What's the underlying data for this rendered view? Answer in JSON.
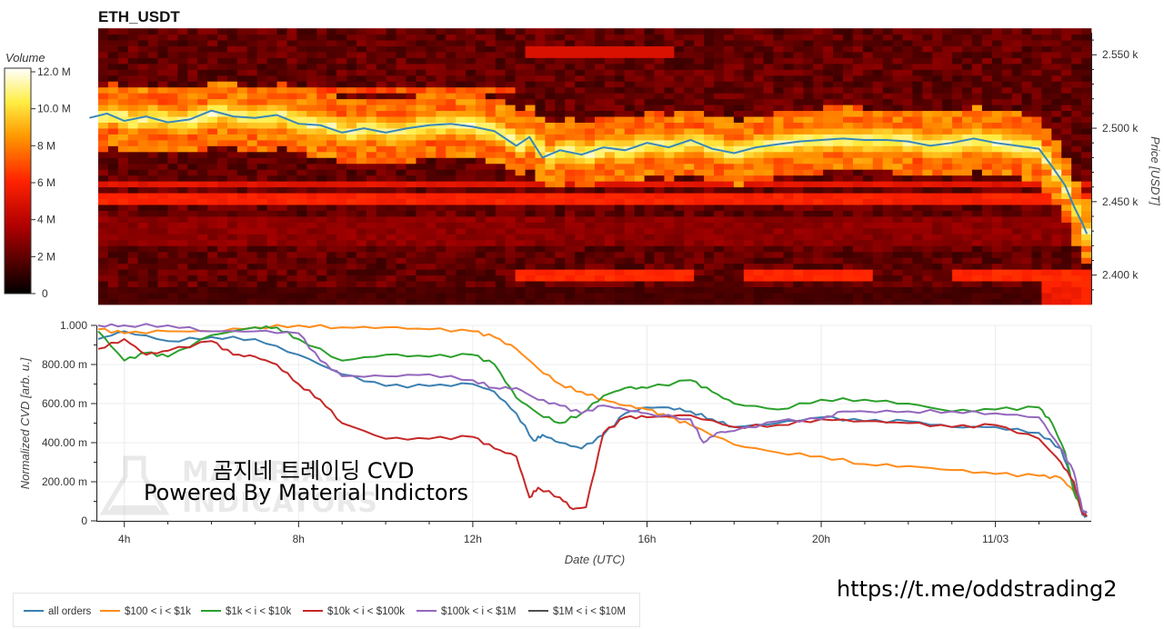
{
  "chart_data": [
    {
      "type": "heatmap",
      "title": "ETH_USDT",
      "colorbar": {
        "label": "Volume",
        "ticks": [
          "0",
          "2 M",
          "4 M",
          "6 M",
          "8 M",
          "10.0 M",
          "12.0 M"
        ],
        "range": [
          0,
          12000000
        ]
      },
      "y_axis": {
        "label": "Price [USDT]",
        "ticks": [
          "2.400 k",
          "2.450 k",
          "2.500 k",
          "2.550 k"
        ],
        "range": [
          2380,
          2565
        ]
      },
      "price_line": {
        "color": "#3a87b8",
        "points": [
          [
            3.2,
            2507
          ],
          [
            3.6,
            2510
          ],
          [
            4.0,
            2505
          ],
          [
            4.5,
            2508
          ],
          [
            5.0,
            2504
          ],
          [
            5.5,
            2506
          ],
          [
            6.0,
            2512
          ],
          [
            6.5,
            2508
          ],
          [
            7.0,
            2507
          ],
          [
            7.5,
            2509
          ],
          [
            8.0,
            2503
          ],
          [
            8.5,
            2502
          ],
          [
            9.0,
            2497
          ],
          [
            9.5,
            2500
          ],
          [
            10.0,
            2497
          ],
          [
            10.5,
            2500
          ],
          [
            11.0,
            2502
          ],
          [
            11.5,
            2503
          ],
          [
            12.0,
            2501
          ],
          [
            12.5,
            2498
          ],
          [
            12.8,
            2492
          ],
          [
            13.0,
            2488
          ],
          [
            13.3,
            2494
          ],
          [
            13.6,
            2480
          ],
          [
            14.0,
            2485
          ],
          [
            14.5,
            2482
          ],
          [
            15.0,
            2487
          ],
          [
            15.5,
            2485
          ],
          [
            16.0,
            2490
          ],
          [
            16.5,
            2487
          ],
          [
            17.0,
            2492
          ],
          [
            17.5,
            2486
          ],
          [
            18.0,
            2483
          ],
          [
            18.5,
            2487
          ],
          [
            19.0,
            2489
          ],
          [
            19.5,
            2491
          ],
          [
            20.0,
            2492
          ],
          [
            20.5,
            2493
          ],
          [
            21.0,
            2492
          ],
          [
            21.5,
            2492
          ],
          [
            22.0,
            2491
          ],
          [
            22.5,
            2488
          ],
          [
            23.0,
            2490
          ],
          [
            23.5,
            2493
          ],
          [
            24.0,
            2490
          ],
          [
            24.5,
            2488
          ],
          [
            25.0,
            2486
          ],
          [
            25.3,
            2474
          ],
          [
            25.6,
            2461
          ],
          [
            25.8,
            2447
          ],
          [
            26.0,
            2435
          ],
          [
            26.1,
            2428
          ]
        ]
      }
    },
    {
      "type": "line",
      "xlabel": "Date (UTC)",
      "ylabel": "Normalized CVD [arb. u.]",
      "x_ticks": [
        "4h",
        "8h",
        "12h",
        "16h",
        "20h",
        "11/03"
      ],
      "x_tick_hours": [
        4,
        8,
        12,
        16,
        20,
        24
      ],
      "xlim": [
        3.4,
        26.2
      ],
      "y_ticks": [
        "0",
        "200.00 m",
        "400.00 m",
        "600.00 m",
        "800.00 m",
        "1.000"
      ],
      "ylim": [
        0,
        1.0
      ],
      "series": [
        {
          "name": "all orders",
          "color": "#3a7fb0",
          "x": [
            3.4,
            4.0,
            5.0,
            6.0,
            7.0,
            8.0,
            9.0,
            10.0,
            11.0,
            12.0,
            12.5,
            13.0,
            13.4,
            13.6,
            14.0,
            14.5,
            15.0,
            15.5,
            16.0,
            16.5,
            17.0,
            17.5,
            18.0,
            19.0,
            20.0,
            21.0,
            22.0,
            23.0,
            24.0,
            25.0,
            25.5,
            25.8,
            26.0,
            26.1
          ],
          "y": [
            0.93,
            0.97,
            0.92,
            0.94,
            0.93,
            0.85,
            0.75,
            0.69,
            0.69,
            0.7,
            0.66,
            0.55,
            0.41,
            0.44,
            0.4,
            0.37,
            0.44,
            0.55,
            0.58,
            0.58,
            0.56,
            0.52,
            0.48,
            0.5,
            0.53,
            0.51,
            0.51,
            0.48,
            0.48,
            0.45,
            0.37,
            0.18,
            0.03,
            0.02
          ]
        },
        {
          "name": "$100 < i < $1k",
          "color": "#ff8c1a",
          "x": [
            3.4,
            4.0,
            5.0,
            6.0,
            7.0,
            8.0,
            9.0,
            10.0,
            11.0,
            12.0,
            12.5,
            13.0,
            13.5,
            14.0,
            14.5,
            15.0,
            15.5,
            16.0,
            16.5,
            17.0,
            18.0,
            19.0,
            20.0,
            21.0,
            22.0,
            23.0,
            24.0,
            25.0,
            25.5,
            25.8,
            26.0,
            26.1
          ],
          "y": [
            0.98,
            0.96,
            0.97,
            0.97,
            0.99,
            1.0,
            0.99,
            0.99,
            0.98,
            0.97,
            0.94,
            0.88,
            0.78,
            0.7,
            0.66,
            0.62,
            0.59,
            0.57,
            0.53,
            0.49,
            0.39,
            0.35,
            0.33,
            0.29,
            0.28,
            0.26,
            0.24,
            0.23,
            0.22,
            0.15,
            0.05,
            0.03
          ]
        },
        {
          "name": "$1k < i < $10k",
          "color": "#2ca02c",
          "x": [
            3.4,
            4.0,
            4.5,
            5.0,
            6.0,
            7.0,
            7.5,
            8.0,
            9.0,
            10.0,
            11.0,
            12.0,
            12.5,
            13.0,
            13.5,
            14.0,
            14.5,
            15.0,
            15.5,
            16.0,
            17.0,
            17.5,
            18.0,
            19.0,
            20.0,
            21.0,
            22.0,
            23.0,
            24.0,
            25.0,
            25.3,
            25.6,
            25.8,
            26.0,
            26.1
          ],
          "y": [
            0.97,
            0.82,
            0.86,
            0.84,
            0.95,
            0.99,
            0.99,
            0.93,
            0.82,
            0.85,
            0.84,
            0.85,
            0.8,
            0.63,
            0.55,
            0.5,
            0.55,
            0.64,
            0.68,
            0.68,
            0.72,
            0.66,
            0.6,
            0.57,
            0.62,
            0.62,
            0.6,
            0.56,
            0.57,
            0.58,
            0.5,
            0.35,
            0.15,
            0.05,
            0.03
          ]
        },
        {
          "name": "$10k < i < $100k",
          "color": "#c62828",
          "x": [
            3.4,
            4.0,
            4.5,
            5.0,
            6.0,
            6.5,
            7.0,
            7.5,
            8.0,
            8.5,
            9.0,
            10.0,
            11.0,
            12.0,
            12.5,
            13.0,
            13.3,
            13.5,
            14.0,
            14.3,
            14.6,
            15.0,
            15.5,
            16.0,
            17.0,
            18.0,
            19.0,
            20.0,
            21.0,
            22.0,
            23.0,
            24.0,
            25.0,
            25.5,
            25.8,
            26.0,
            26.1
          ],
          "y": [
            0.88,
            0.93,
            0.85,
            0.87,
            0.92,
            0.85,
            0.84,
            0.8,
            0.7,
            0.62,
            0.5,
            0.42,
            0.42,
            0.43,
            0.37,
            0.33,
            0.12,
            0.17,
            0.12,
            0.06,
            0.07,
            0.45,
            0.53,
            0.53,
            0.54,
            0.48,
            0.49,
            0.52,
            0.51,
            0.5,
            0.48,
            0.49,
            0.42,
            0.3,
            0.2,
            0.04,
            0.03
          ]
        },
        {
          "name": "$100k < i < $1M",
          "color": "#9467bd",
          "x": [
            3.4,
            4.0,
            5.0,
            6.0,
            7.0,
            8.0,
            8.5,
            9.0,
            10.0,
            11.0,
            12.0,
            12.5,
            13.0,
            13.5,
            14.0,
            14.5,
            15.0,
            15.5,
            16.0,
            17.0,
            17.3,
            17.6,
            18.0,
            19.0,
            20.0,
            20.5,
            21.0,
            22.0,
            23.0,
            24.0,
            25.0,
            25.5,
            25.8,
            26.0,
            26.1
          ],
          "y": [
            1.0,
            1.0,
            1.0,
            0.97,
            0.97,
            0.96,
            0.82,
            0.74,
            0.74,
            0.75,
            0.72,
            0.68,
            0.68,
            0.62,
            0.59,
            0.55,
            0.59,
            0.57,
            0.55,
            0.52,
            0.4,
            0.45,
            0.46,
            0.51,
            0.52,
            0.56,
            0.56,
            0.56,
            0.56,
            0.55,
            0.53,
            0.37,
            0.25,
            0.05,
            0.04
          ]
        },
        {
          "name": "$1M < i < $10M",
          "color": "#505050",
          "x": [
            3.4,
            26.1
          ],
          "y": [
            null,
            null
          ]
        }
      ]
    }
  ],
  "overlay": {
    "line1": "곰지네 트레이딩 CVD",
    "line2": "Powered By Material Indictors",
    "watermark_top": "MATERIAL",
    "watermark_bottom": "INDICATORS",
    "link": "https://t.me/oddstrading2"
  }
}
